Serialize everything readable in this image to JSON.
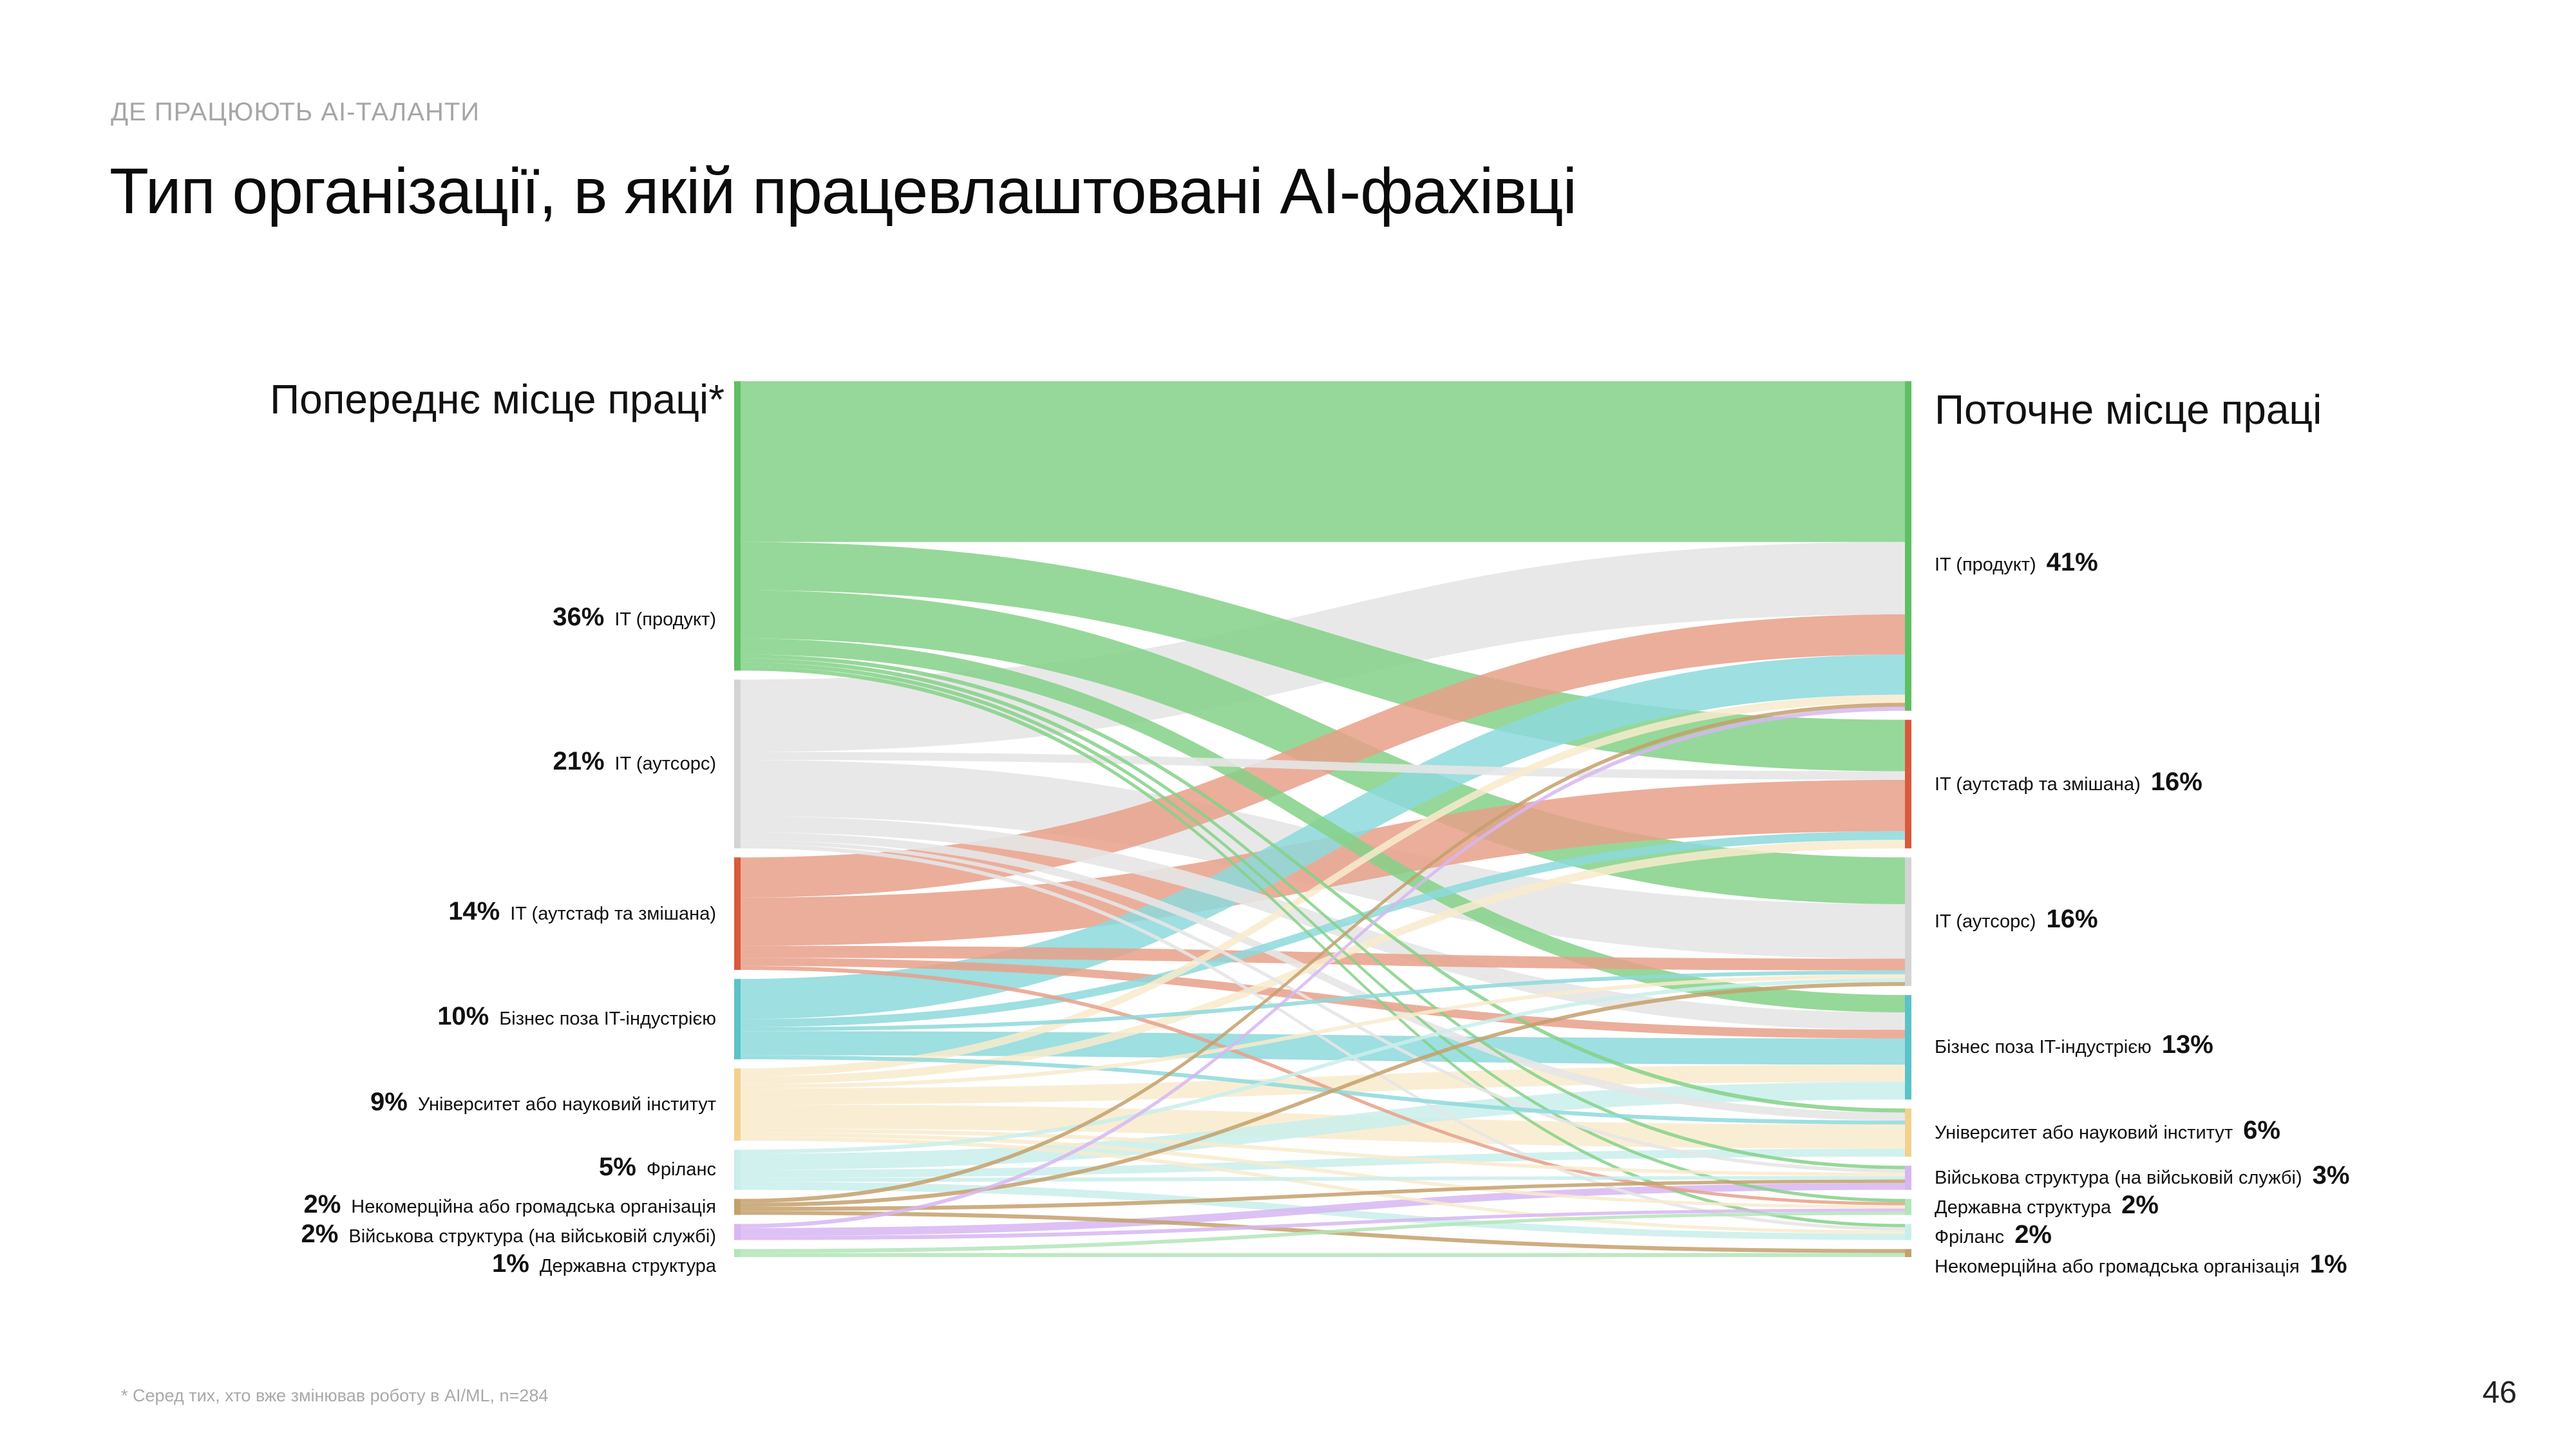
{
  "header": {
    "kicker": "ДЕ ПРАЦЮЮТЬ AI-ТАЛАНТИ",
    "title": "Тип організації, в якій працевлаштовані AI-фахівці"
  },
  "footnote": "* Серед тих, хто вже змінював роботу в AI/ML, n=284",
  "page_number": "46",
  "colors": {
    "it_product": "#84d187",
    "it_outsource": "#e6e6e6",
    "it_outstaff": "#e7a08a",
    "business": "#8dd9dc",
    "university": "#f8ebcc",
    "freelance": "#c9eeeb",
    "nonprofit": "#c4a06b",
    "military": "#d7b6f2",
    "government": "#b3e5b8",
    "node_it_outstaff": "#d9593d",
    "node_business": "#5bc2c9",
    "node_university": "#f3d08e",
    "node_it_outsource": "#d4d4d4",
    "node_it_product": "#5fbf63"
  },
  "chart_data": {
    "type": "sankey",
    "title": "Тип організації, в якій працевлаштовані AI-фахівці",
    "left_heading": "Попереднє місце праці*",
    "right_heading": "Поточне місце праці",
    "left_nodes": [
      {
        "key": "it_product",
        "label": "IT (продукт)",
        "pct_label": "36%",
        "value": 36
      },
      {
        "key": "it_outsource",
        "label": "IT (аутсорс)",
        "pct_label": "21%",
        "value": 21
      },
      {
        "key": "it_outstaff",
        "label": "IT (аутстаф та змішана)",
        "pct_label": "14%",
        "value": 14
      },
      {
        "key": "business",
        "label": "Бізнес поза IT-індустрією",
        "pct_label": "10%",
        "value": 10
      },
      {
        "key": "university",
        "label": "Університет або науковий інститут",
        "pct_label": "9%",
        "value": 9
      },
      {
        "key": "freelance",
        "label": "Фріланс",
        "pct_label": "5%",
        "value": 5
      },
      {
        "key": "nonprofit",
        "label": "Некомерційна або громадська організація",
        "pct_label": "2%",
        "value": 2
      },
      {
        "key": "military",
        "label": "Військова структура (на військовій службі)",
        "pct_label": "2%",
        "value": 2
      },
      {
        "key": "government",
        "label": "Державна структура",
        "pct_label": "1%",
        "value": 1
      }
    ],
    "right_nodes": [
      {
        "key": "it_product",
        "label": "IT (продукт)",
        "pct_label": "41%",
        "value": 41
      },
      {
        "key": "it_outstaff",
        "label": "IT (аутстаф та змішана)",
        "pct_label": "16%",
        "value": 16
      },
      {
        "key": "it_outsource",
        "label": "IT (аутсорс)",
        "pct_label": "16%",
        "value": 16
      },
      {
        "key": "business",
        "label": "Бізнес поза IT-індустрією",
        "pct_label": "13%",
        "value": 13
      },
      {
        "key": "university",
        "label": "Університет або науковий інститут",
        "pct_label": "6%",
        "value": 6
      },
      {
        "key": "military",
        "label": "Військова структура (на військовій службі)",
        "pct_label": "3%",
        "value": 3
      },
      {
        "key": "government",
        "label": "Державна структура",
        "pct_label": "2%",
        "value": 2
      },
      {
        "key": "freelance",
        "label": "Фріланс",
        "pct_label": "2%",
        "value": 2
      },
      {
        "key": "nonprofit",
        "label": "Некомерційна або громадська організація",
        "pct_label": "1%",
        "value": 1
      }
    ],
    "flows": [
      {
        "from": "it_product",
        "to": "it_product",
        "value": 20
      },
      {
        "from": "it_product",
        "to": "it_outstaff",
        "value": 6
      },
      {
        "from": "it_product",
        "to": "it_outsource",
        "value": 6
      },
      {
        "from": "it_product",
        "to": "business",
        "value": 2
      },
      {
        "from": "it_product",
        "to": "university",
        "value": 0.5
      },
      {
        "from": "it_product",
        "to": "military",
        "value": 0.5
      },
      {
        "from": "it_product",
        "to": "government",
        "value": 0.5
      },
      {
        "from": "it_product",
        "to": "freelance",
        "value": 0.5
      },
      {
        "from": "it_outsource",
        "to": "it_product",
        "value": 9
      },
      {
        "from": "it_outsource",
        "to": "it_outstaff",
        "value": 1
      },
      {
        "from": "it_outsource",
        "to": "it_outsource",
        "value": 7
      },
      {
        "from": "it_outsource",
        "to": "business",
        "value": 2
      },
      {
        "from": "it_outsource",
        "to": "university",
        "value": 1
      },
      {
        "from": "it_outsource",
        "to": "military",
        "value": 0.5
      },
      {
        "from": "it_outsource",
        "to": "freelance",
        "value": 0.5
      },
      {
        "from": "it_outstaff",
        "to": "it_product",
        "value": 5
      },
      {
        "from": "it_outstaff",
        "to": "it_outstaff",
        "value": 6
      },
      {
        "from": "it_outstaff",
        "to": "it_outsource",
        "value": 1.5
      },
      {
        "from": "it_outstaff",
        "to": "business",
        "value": 1
      },
      {
        "from": "it_outstaff",
        "to": "government",
        "value": 0.5
      },
      {
        "from": "business",
        "to": "it_product",
        "value": 5
      },
      {
        "from": "business",
        "to": "it_outstaff",
        "value": 1
      },
      {
        "from": "business",
        "to": "it_outsource",
        "value": 0.5
      },
      {
        "from": "business",
        "to": "business",
        "value": 3
      },
      {
        "from": "business",
        "to": "university",
        "value": 0.5
      },
      {
        "from": "university",
        "to": "it_product",
        "value": 1
      },
      {
        "from": "university",
        "to": "it_outstaff",
        "value": 1
      },
      {
        "from": "university",
        "to": "it_outsource",
        "value": 0.5
      },
      {
        "from": "university",
        "to": "business",
        "value": 2
      },
      {
        "from": "university",
        "to": "university",
        "value": 3
      },
      {
        "from": "university",
        "to": "military",
        "value": 0.5
      },
      {
        "from": "university",
        "to": "government",
        "value": 0.5
      },
      {
        "from": "university",
        "to": "freelance",
        "value": 0.5
      },
      {
        "from": "freelance",
        "to": "it_outsource",
        "value": 0.5
      },
      {
        "from": "freelance",
        "to": "business",
        "value": 2
      },
      {
        "from": "freelance",
        "to": "university",
        "value": 1
      },
      {
        "from": "freelance",
        "to": "military",
        "value": 0.5
      },
      {
        "from": "freelance",
        "to": "freelance",
        "value": 1
      },
      {
        "from": "nonprofit",
        "to": "it_product",
        "value": 0.5
      },
      {
        "from": "nonprofit",
        "to": "it_outsource",
        "value": 0.5
      },
      {
        "from": "nonprofit",
        "to": "military",
        "value": 0.5
      },
      {
        "from": "nonprofit",
        "to": "nonprofit",
        "value": 0.5
      },
      {
        "from": "military",
        "to": "it_product",
        "value": 0.5
      },
      {
        "from": "military",
        "to": "military",
        "value": 1
      },
      {
        "from": "military",
        "to": "government",
        "value": 0.5
      },
      {
        "from": "government",
        "to": "government",
        "value": 0.5
      },
      {
        "from": "government",
        "to": "nonprofit",
        "value": 0.5
      }
    ]
  }
}
